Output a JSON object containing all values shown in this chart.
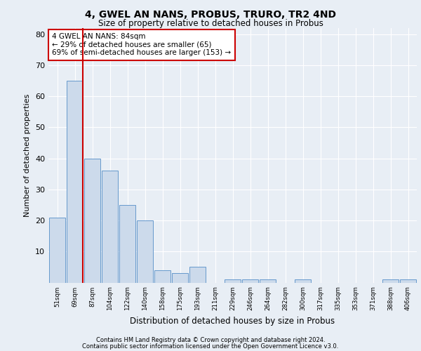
{
  "title1": "4, GWEL AN NANS, PROBUS, TRURO, TR2 4ND",
  "title2": "Size of property relative to detached houses in Probus",
  "xlabel": "Distribution of detached houses by size in Probus",
  "ylabel": "Number of detached properties",
  "categories": [
    "51sqm",
    "69sqm",
    "87sqm",
    "104sqm",
    "122sqm",
    "140sqm",
    "158sqm",
    "175sqm",
    "193sqm",
    "211sqm",
    "229sqm",
    "246sqm",
    "264sqm",
    "282sqm",
    "300sqm",
    "317sqm",
    "335sqm",
    "353sqm",
    "371sqm",
    "388sqm",
    "406sqm"
  ],
  "values": [
    21,
    65,
    40,
    36,
    25,
    20,
    4,
    3,
    5,
    0,
    1,
    1,
    1,
    0,
    1,
    0,
    0,
    0,
    0,
    1,
    1
  ],
  "bar_color": "#ccdaeb",
  "bar_edge_color": "#6699cc",
  "vline_color": "#cc0000",
  "annotation_line1": "4 GWEL AN NANS: 84sqm",
  "annotation_line2": "← 29% of detached houses are smaller (65)",
  "annotation_line3": "69% of semi-detached houses are larger (153) →",
  "annotation_box_color": "#cc0000",
  "ylim": [
    0,
    82
  ],
  "yticks": [
    0,
    10,
    20,
    30,
    40,
    50,
    60,
    70,
    80
  ],
  "footer1": "Contains HM Land Registry data © Crown copyright and database right 2024.",
  "footer2": "Contains public sector information licensed under the Open Government Licence v3.0.",
  "bg_color": "#e8eef5",
  "grid_color": "#ffffff"
}
